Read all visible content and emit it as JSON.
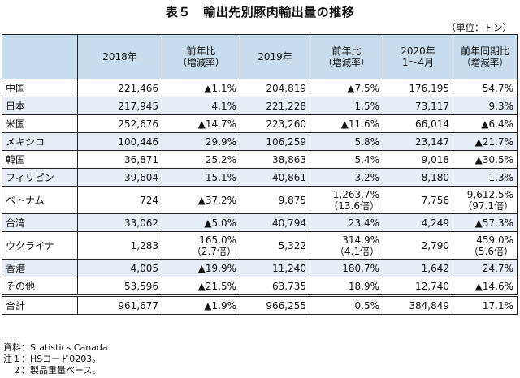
{
  "title": "表５　輸出先別豚肉輸出量の推移",
  "unit": "（単位：トン）",
  "headers": {
    "y2018": "2018年",
    "chg2018": "前年比",
    "chg2018_sub": "（増減率）",
    "y2019": "2019年",
    "chg2019": "前年比",
    "chg2019_sub": "（増減率）",
    "y2020": "2020年",
    "y2020_sub": "1～4月",
    "chg2020": "前年同期比",
    "chg2020_sub": "（増減率）"
  },
  "rows": [
    {
      "name": "中国",
      "v2018": "221,466",
      "c2018": "▲1.1%",
      "v2019": "204,819",
      "c2019": "▲7.5%",
      "v2020": "176,195",
      "c2020": "54.7%"
    },
    {
      "name": "日本",
      "v2018": "217,945",
      "c2018": "4.1%",
      "v2019": "221,228",
      "c2019": "1.5%",
      "v2020": "73,117",
      "c2020": "9.3%"
    },
    {
      "name": "米国",
      "v2018": "252,676",
      "c2018": "▲14.7%",
      "v2019": "223,260",
      "c2019": "▲11.6%",
      "v2020": "66,014",
      "c2020": "▲6.4%"
    },
    {
      "name": "メキシコ",
      "v2018": "100,446",
      "c2018": "29.9%",
      "v2019": "106,259",
      "c2019": "5.8%",
      "v2020": "23,147",
      "c2020": "▲21.7%"
    },
    {
      "name": "韓国",
      "v2018": "36,871",
      "c2018": "25.2%",
      "v2019": "38,863",
      "c2019": "5.4%",
      "v2020": "9,018",
      "c2020": "▲30.5%"
    },
    {
      "name": "フィリピン",
      "v2018": "39,604",
      "c2018": "15.1%",
      "v2019": "40,861",
      "c2019": "3.2%",
      "v2020": "8,180",
      "c2020": "1.3%"
    },
    {
      "name": "ベトナム",
      "v2018": "724",
      "c2018": "▲37.2%",
      "v2019": "9,875",
      "c2019": "1,263.7%",
      "c2019_sub": "（13.6倍）",
      "v2020": "7,756",
      "c2020": "9,612.5%",
      "c2020_sub": "（97.1倍）"
    },
    {
      "name": "台湾",
      "v2018": "33,062",
      "c2018": "▲5.0%",
      "v2019": "40,794",
      "c2019": "23.4%",
      "v2020": "4,249",
      "c2020": "▲57.3%"
    },
    {
      "name": "ウクライナ",
      "v2018": "1,283",
      "c2018": "165.0%",
      "c2018_sub": "（2.7倍）",
      "v2019": "5,322",
      "c2019": "314.9%",
      "c2019_sub": "（4.1倍）",
      "v2020": "2,790",
      "c2020": "459.0%",
      "c2020_sub": "（5.6倍）"
    },
    {
      "name": "香港",
      "v2018": "4,005",
      "c2018": "▲19.9%",
      "v2019": "11,240",
      "c2019": "180.7%",
      "v2020": "1,642",
      "c2020": "24.7%"
    },
    {
      "name": "その他",
      "v2018": "53,596",
      "c2018": "▲21.5%",
      "v2019": "63,735",
      "c2019": "18.9%",
      "v2020": "12,740",
      "c2020": "▲14.6%"
    },
    {
      "name": "合計",
      "v2018": "961,677",
      "c2018": "▲1.9%",
      "v2019": "966,255",
      "c2019": "0.5%",
      "v2020": "384,849",
      "c2020": "17.1%"
    }
  ],
  "notes": [
    "資料：Statistics Canada",
    "注１：HSコード0203。",
    "　２：製品重量ベース。"
  ],
  "colors": {
    "header_bg": "#c7dced",
    "row_shade": "#e7eef7"
  }
}
